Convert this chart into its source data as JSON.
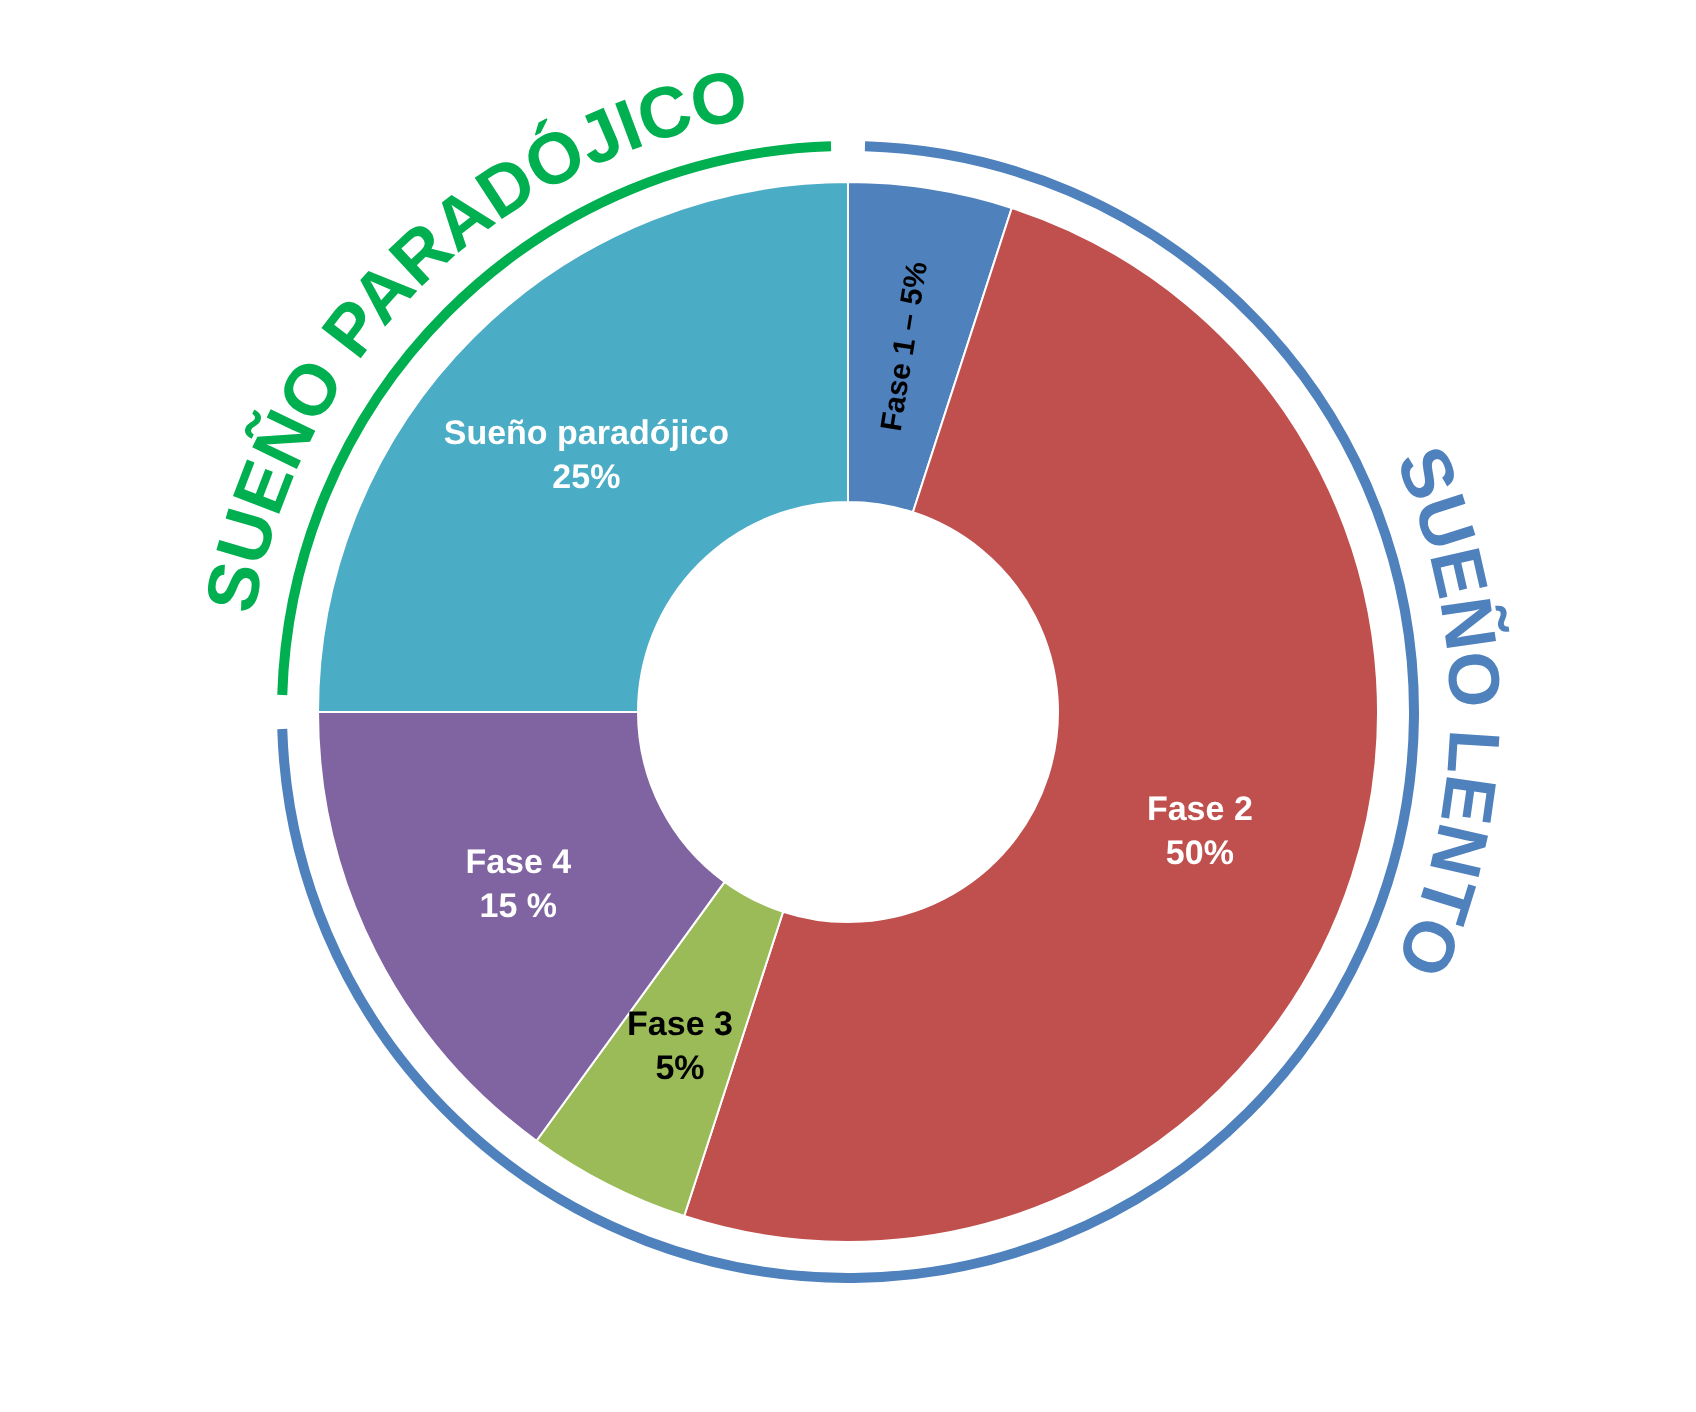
{
  "chart_data": {
    "type": "donut",
    "categories": [
      "Fase 1 –",
      "Fase 2",
      "Fase 3",
      "Fase 4",
      "Sueño paradójico"
    ],
    "values": [
      5,
      50,
      5,
      15,
      25
    ],
    "colors": [
      "#4f81bd",
      "#c0504d",
      "#9bbb59",
      "#8064a2",
      "#4bacc6"
    ],
    "value_labels": [
      "5%",
      "50%",
      "5%",
      "15 %",
      "25%"
    ],
    "annotations": [
      "SUEÑO PARADÓJICO",
      "SUEÑO LENTO"
    ]
  }
}
